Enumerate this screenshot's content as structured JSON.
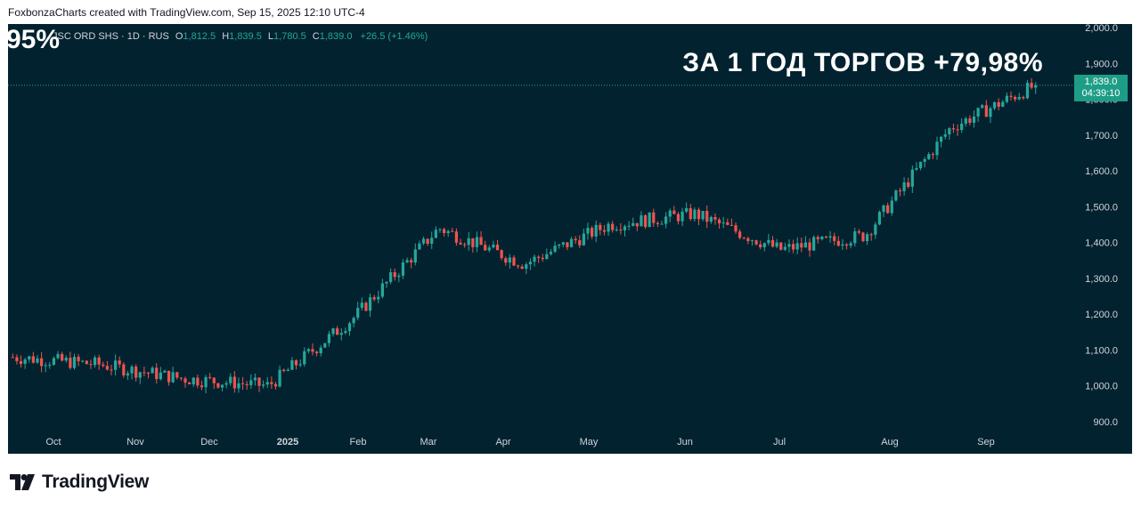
{
  "credit": "FoxbonzaCharts created with TradingView.com, Sep 15, 2025 12:10 UTC-4",
  "legend": {
    "symbol": "JSC ORD SHS · 1D · RUS",
    "o_label": "O",
    "o_value": "1,812.5",
    "h_label": "H",
    "h_value": "1,839.5",
    "l_label": "L",
    "l_value": "1,780.5",
    "c_label": "C",
    "c_value": "1,839.0",
    "change": "+26.5 (+1.46%)"
  },
  "overlay_pct": "95%",
  "headline": "ЗА 1 ГОД ТОРГОВ +79,98%",
  "price_tag": {
    "price": "1,839.0",
    "countdown": "04:39:10"
  },
  "brand": "TradingView",
  "colors": {
    "background": "#03222f",
    "up": "#26a69a",
    "down": "#ef5350",
    "axis_text": "#d1d4dc"
  },
  "chart_data": {
    "type": "candlestick",
    "y_axis": {
      "side": "right",
      "ylim": [
        860,
        2010
      ],
      "ticks": [
        900,
        1000,
        1100,
        1200,
        1300,
        1400,
        1500,
        1600,
        1700,
        1800,
        1900,
        2000
      ],
      "tick_labels": [
        "900.0",
        "1,000.0",
        "1,100.0",
        "1,200.0",
        "1,300.0",
        "1,400.0",
        "1,500.0",
        "1,600.0",
        "1,700.0",
        "1,800.0",
        "1,900.0",
        "2,000.0"
      ]
    },
    "x_axis": {
      "tick_labels": [
        "Oct",
        "Nov",
        "Dec",
        "2025",
        "Feb",
        "Mar",
        "Apr",
        "May",
        "Jun",
        "Jul",
        "Aug",
        "Sep"
      ]
    },
    "last_price": 1839.0,
    "close_path": [
      {
        "month": "Sep 2024 (mid)",
        "close": 1080
      },
      {
        "month": "Oct 2024",
        "close": 1060
      },
      {
        "month": "Nov 2024",
        "close": 1020
      },
      {
        "month": "Dec 2024",
        "close": 1000
      },
      {
        "month": "Jan 2025",
        "close": 1190
      },
      {
        "month": "Feb 2025",
        "close": 1440
      },
      {
        "month": "Mar 2025",
        "close": 1340
      },
      {
        "month": "Apr 2025",
        "close": 1450
      },
      {
        "month": "May 2025",
        "close": 1480
      },
      {
        "month": "Jun 2025",
        "close": 1380
      },
      {
        "month": "Jul 2025",
        "close": 1420
      },
      {
        "month": "Aug 2025",
        "close": 1720
      },
      {
        "month": "Sep 2025",
        "close": 1839
      }
    ]
  }
}
